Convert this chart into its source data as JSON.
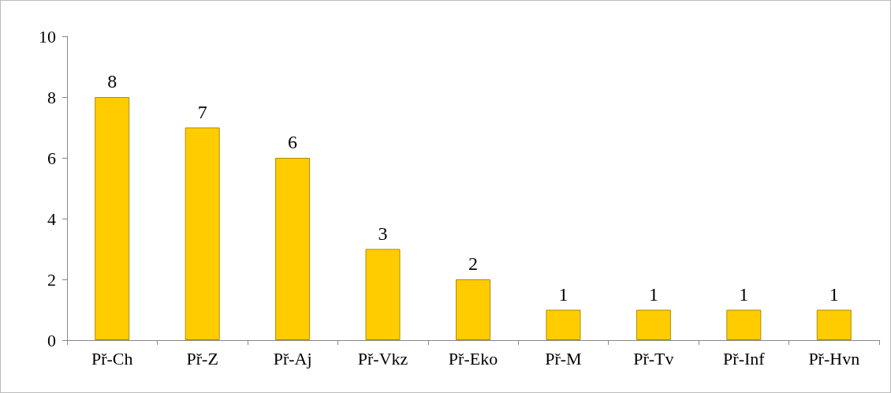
{
  "chart_data": {
    "type": "bar",
    "categories": [
      "Př-Ch",
      "Př-Z",
      "Př-Aj",
      "Př-Vkz",
      "Př-Eko",
      "Př-M",
      "Př-Tv",
      "Př-Inf",
      "Př-Hvn"
    ],
    "values": [
      8,
      7,
      6,
      3,
      2,
      1,
      1,
      1,
      1
    ],
    "color": "#ffcc00",
    "ylim": [
      0,
      10
    ],
    "yticks": [
      0,
      2,
      4,
      6,
      8,
      10
    ],
    "data_labels": true
  }
}
